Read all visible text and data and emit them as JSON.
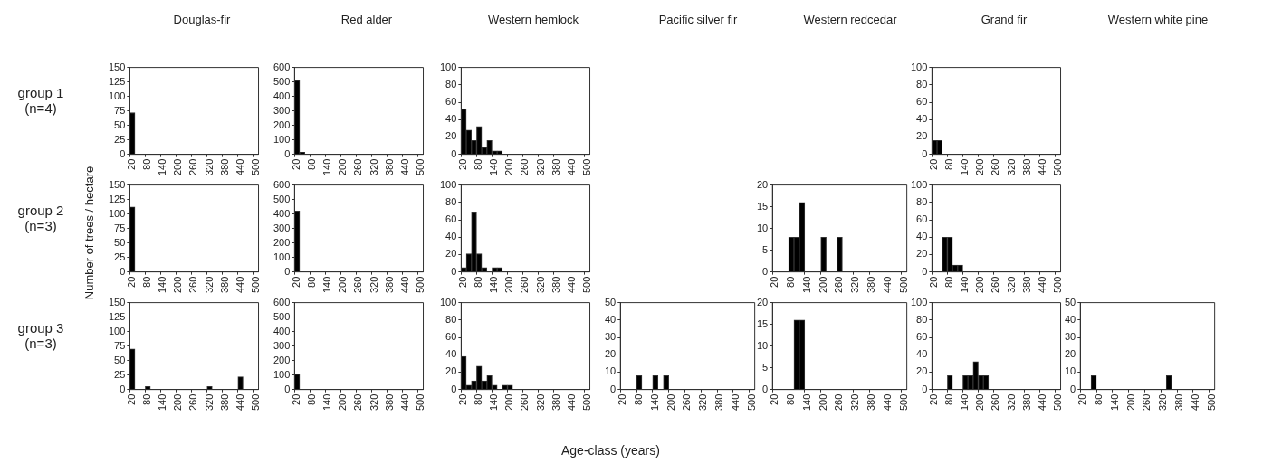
{
  "chart_data": [
    {
      "type": "bar",
      "title": "Douglas-fir",
      "annotations": [
        "group 1 (n=4)",
        "Number of trees / hectare",
        "Age-class (years)"
      ],
      "color": "#000000",
      "categories": [
        "20",
        null,
        null,
        "80",
        null,
        null,
        "140",
        null,
        null,
        "200",
        null,
        null,
        "260",
        null,
        null,
        "320",
        null,
        null,
        "380",
        null,
        null,
        "440",
        null,
        null,
        "500"
      ],
      "values": [
        72,
        0,
        0,
        0,
        0,
        0,
        0,
        0,
        0,
        0,
        0,
        0,
        0,
        0,
        0,
        0,
        0,
        0,
        0,
        0,
        0,
        0,
        0,
        0,
        0
      ],
      "ylim": [
        0,
        150
      ],
      "yticks": [
        0,
        25,
        50,
        75,
        100,
        125,
        150
      ],
      "grid": false
    },
    {
      "type": "bar",
      "title": "Red alder",
      "color": "#000000",
      "categories": [
        "20",
        null,
        null,
        "80",
        null,
        null,
        "140",
        null,
        null,
        "200",
        null,
        null,
        "260",
        null,
        null,
        "320",
        null,
        null,
        "380",
        null,
        null,
        "440",
        null,
        null,
        "500"
      ],
      "values": [
        510,
        15,
        0,
        0,
        0,
        0,
        0,
        0,
        0,
        0,
        0,
        0,
        0,
        0,
        0,
        0,
        0,
        0,
        0,
        0,
        0,
        0,
        0,
        0,
        0
      ],
      "ylim": [
        0,
        600
      ],
      "yticks": [
        0,
        100,
        200,
        300,
        400,
        500,
        600
      ],
      "grid": false
    },
    {
      "type": "bar",
      "title": "Western hemlock",
      "color": "#000000",
      "categories": [
        "20",
        null,
        null,
        "80",
        null,
        null,
        "140",
        null,
        null,
        "200",
        null,
        null,
        "260",
        null,
        null,
        "320",
        null,
        null,
        "380",
        null,
        null,
        "440",
        null,
        null,
        "500"
      ],
      "values": [
        52,
        28,
        16,
        32,
        8,
        16,
        4,
        4,
        0,
        0,
        0,
        0,
        0,
        0,
        0,
        0,
        0,
        0,
        0,
        0,
        0,
        0,
        0,
        0,
        0
      ],
      "ylim": [
        0,
        100
      ],
      "yticks": [
        0,
        20,
        40,
        60,
        80,
        100
      ],
      "grid": false
    },
    {
      "type": "bar",
      "title": "Grand fir",
      "color": "#000000",
      "categories": [
        "20",
        null,
        null,
        "80",
        null,
        null,
        "140",
        null,
        null,
        "200",
        null,
        null,
        "260",
        null,
        null,
        "320",
        null,
        null,
        "380",
        null,
        null,
        "440",
        null,
        null,
        "500"
      ],
      "values": [
        16,
        16,
        0,
        0,
        0,
        0,
        0,
        0,
        0,
        0,
        0,
        0,
        0,
        0,
        0,
        0,
        0,
        0,
        0,
        0,
        0,
        0,
        0,
        0,
        0
      ],
      "ylim": [
        0,
        100
      ],
      "yticks": [
        0,
        20,
        40,
        60,
        80,
        100
      ],
      "grid": false
    },
    {
      "type": "bar",
      "annotations": [
        "group 2 (n=3)"
      ],
      "color": "#000000",
      "categories": [
        "20",
        null,
        null,
        "80",
        null,
        null,
        "140",
        null,
        null,
        "200",
        null,
        null,
        "260",
        null,
        null,
        "320",
        null,
        null,
        "380",
        null,
        null,
        "440",
        null,
        null,
        "500"
      ],
      "values": [
        112,
        0,
        0,
        0,
        0,
        0,
        0,
        0,
        0,
        0,
        0,
        0,
        0,
        0,
        0,
        0,
        0,
        0,
        0,
        0,
        0,
        0,
        0,
        0,
        0
      ],
      "ylim": [
        0,
        150
      ],
      "yticks": [
        0,
        25,
        50,
        75,
        100,
        125,
        150
      ],
      "grid": false
    },
    {
      "type": "bar",
      "color": "#000000",
      "categories": [
        "20",
        null,
        null,
        "80",
        null,
        null,
        "140",
        null,
        null,
        "200",
        null,
        null,
        "260",
        null,
        null,
        "320",
        null,
        null,
        "380",
        null,
        null,
        "440",
        null,
        null,
        "500"
      ],
      "values": [
        420,
        0,
        0,
        0,
        0,
        0,
        0,
        0,
        0,
        0,
        0,
        0,
        0,
        0,
        0,
        0,
        0,
        0,
        0,
        0,
        0,
        0,
        0,
        0,
        0
      ],
      "ylim": [
        0,
        600
      ],
      "yticks": [
        0,
        100,
        200,
        300,
        400,
        500,
        600
      ],
      "grid": false
    },
    {
      "type": "bar",
      "color": "#000000",
      "categories": [
        "20",
        null,
        null,
        "80",
        null,
        null,
        "140",
        null,
        null,
        "200",
        null,
        null,
        "260",
        null,
        null,
        "320",
        null,
        null,
        "380",
        null,
        null,
        "440",
        null,
        null,
        "500"
      ],
      "values": [
        5,
        21,
        69,
        21,
        5,
        0,
        5,
        5,
        0,
        0,
        0,
        0,
        0,
        0,
        0,
        0,
        0,
        0,
        0,
        0,
        0,
        0,
        0,
        0,
        0
      ],
      "ylim": [
        0,
        100
      ],
      "yticks": [
        0,
        20,
        40,
        60,
        80,
        100
      ],
      "grid": false
    },
    {
      "type": "bar",
      "title": "Western redcedar",
      "color": "#000000",
      "categories": [
        "20",
        null,
        null,
        "80",
        null,
        null,
        "140",
        null,
        null,
        "200",
        null,
        null,
        "260",
        null,
        null,
        "320",
        null,
        null,
        "380",
        null,
        null,
        "440",
        null,
        null,
        "500"
      ],
      "values": [
        0,
        0,
        0,
        8,
        8,
        16,
        0,
        0,
        0,
        8,
        0,
        0,
        8,
        0,
        0,
        0,
        0,
        0,
        0,
        0,
        0,
        0,
        0,
        0,
        0
      ],
      "ylim": [
        0,
        20
      ],
      "yticks": [
        0,
        5,
        10,
        15,
        20
      ],
      "grid": false
    },
    {
      "type": "bar",
      "color": "#000000",
      "categories": [
        "20",
        null,
        null,
        "80",
        null,
        null,
        "140",
        null,
        null,
        "200",
        null,
        null,
        "260",
        null,
        null,
        "320",
        null,
        null,
        "380",
        null,
        null,
        "440",
        null,
        null,
        "500"
      ],
      "values": [
        0,
        0,
        40,
        40,
        8,
        8,
        0,
        0,
        0,
        0,
        0,
        0,
        0,
        0,
        0,
        0,
        0,
        0,
        0,
        0,
        0,
        0,
        0,
        0,
        0
      ],
      "ylim": [
        0,
        100
      ],
      "yticks": [
        0,
        20,
        40,
        60,
        80,
        100
      ],
      "grid": false
    },
    {
      "type": "bar",
      "annotations": [
        "group 3 (n=3)"
      ],
      "color": "#000000",
      "categories": [
        "20",
        null,
        null,
        "80",
        null,
        null,
        "140",
        null,
        null,
        "200",
        null,
        null,
        "260",
        null,
        null,
        "320",
        null,
        null,
        "380",
        null,
        null,
        "440",
        null,
        null,
        "500"
      ],
      "values": [
        70,
        0,
        0,
        5,
        0,
        0,
        0,
        0,
        0,
        0,
        0,
        0,
        0,
        0,
        0,
        5,
        0,
        0,
        0,
        0,
        0,
        22,
        0,
        0,
        0
      ],
      "ylim": [
        0,
        150
      ],
      "yticks": [
        0,
        25,
        50,
        75,
        100,
        125,
        150
      ],
      "grid": false
    },
    {
      "type": "bar",
      "color": "#000000",
      "categories": [
        "20",
        null,
        null,
        "80",
        null,
        null,
        "140",
        null,
        null,
        "200",
        null,
        null,
        "260",
        null,
        null,
        "320",
        null,
        null,
        "380",
        null,
        null,
        "440",
        null,
        null,
        "500"
      ],
      "values": [
        105,
        0,
        0,
        0,
        0,
        0,
        0,
        0,
        0,
        0,
        0,
        0,
        0,
        0,
        0,
        0,
        0,
        0,
        0,
        0,
        0,
        0,
        0,
        0,
        0
      ],
      "ylim": [
        0,
        600
      ],
      "yticks": [
        0,
        100,
        200,
        300,
        400,
        500,
        600
      ],
      "grid": false
    },
    {
      "type": "bar",
      "color": "#000000",
      "categories": [
        "20",
        null,
        null,
        "80",
        null,
        null,
        "140",
        null,
        null,
        "200",
        null,
        null,
        "260",
        null,
        null,
        "320",
        null,
        null,
        "380",
        null,
        null,
        "440",
        null,
        null,
        "500"
      ],
      "values": [
        38,
        5,
        10,
        27,
        10,
        16,
        5,
        0,
        5,
        5,
        0,
        0,
        0,
        0,
        0,
        0,
        0,
        0,
        0,
        0,
        0,
        0,
        0,
        0,
        0
      ],
      "ylim": [
        0,
        100
      ],
      "yticks": [
        0,
        20,
        40,
        60,
        80,
        100
      ],
      "grid": false
    },
    {
      "type": "bar",
      "title": "Pacific silver fir",
      "color": "#000000",
      "categories": [
        "20",
        null,
        null,
        "80",
        null,
        null,
        "140",
        null,
        null,
        "200",
        null,
        null,
        "260",
        null,
        null,
        "320",
        null,
        null,
        "380",
        null,
        null,
        "440",
        null,
        null,
        "500"
      ],
      "values": [
        0,
        0,
        0,
        8,
        0,
        0,
        8,
        0,
        8,
        0,
        0,
        0,
        0,
        0,
        0,
        0,
        0,
        0,
        0,
        0,
        0,
        0,
        0,
        0,
        0
      ],
      "ylim": [
        0,
        50
      ],
      "yticks": [
        0,
        10,
        20,
        30,
        40,
        50
      ],
      "grid": false
    },
    {
      "type": "bar",
      "color": "#000000",
      "categories": [
        "20",
        null,
        null,
        "80",
        null,
        null,
        "140",
        null,
        null,
        "200",
        null,
        null,
        "260",
        null,
        null,
        "320",
        null,
        null,
        "380",
        null,
        null,
        "440",
        null,
        null,
        "500"
      ],
      "values": [
        0,
        0,
        0,
        0,
        16,
        16,
        0,
        0,
        0,
        0,
        0,
        0,
        0,
        0,
        0,
        0,
        0,
        0,
        0,
        0,
        0,
        0,
        0,
        0,
        0
      ],
      "ylim": [
        0,
        20
      ],
      "yticks": [
        0,
        5,
        10,
        15,
        20
      ],
      "grid": false
    },
    {
      "type": "bar",
      "color": "#000000",
      "categories": [
        "20",
        null,
        null,
        "80",
        null,
        null,
        "140",
        null,
        null,
        "200",
        null,
        null,
        "260",
        null,
        null,
        "320",
        null,
        null,
        "380",
        null,
        null,
        "440",
        null,
        null,
        "500"
      ],
      "values": [
        0,
        0,
        0,
        16,
        0,
        0,
        16,
        16,
        32,
        16,
        16,
        0,
        0,
        0,
        0,
        0,
        0,
        0,
        0,
        0,
        0,
        0,
        0,
        0,
        0
      ],
      "ylim": [
        0,
        100
      ],
      "yticks": [
        0,
        20,
        40,
        60,
        80,
        100
      ],
      "grid": false
    },
    {
      "type": "bar",
      "title": "Western white pine",
      "color": "#000000",
      "categories": [
        "20",
        null,
        null,
        "80",
        null,
        null,
        "140",
        null,
        null,
        "200",
        null,
        null,
        "260",
        null,
        null,
        "320",
        null,
        null,
        "380",
        null,
        null,
        "440",
        null,
        null,
        "500"
      ],
      "values": [
        0,
        0,
        8,
        0,
        0,
        0,
        0,
        0,
        0,
        0,
        0,
        0,
        0,
        0,
        0,
        0,
        8,
        0,
        0,
        0,
        0,
        0,
        0,
        0,
        0
      ],
      "ylim": [
        0,
        50
      ],
      "yticks": [
        0,
        10,
        20,
        30,
        40,
        50
      ],
      "grid": false
    }
  ]
}
